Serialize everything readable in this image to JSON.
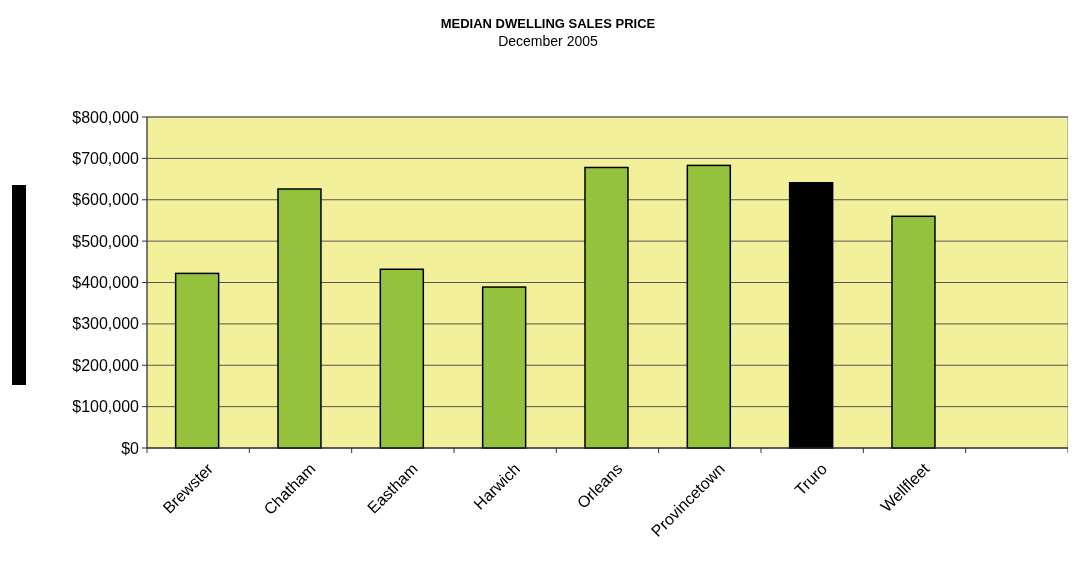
{
  "chart_data": {
    "type": "bar",
    "title": "MEDIAN DWELLING SALES PRICE",
    "subtitle": "December 2005",
    "categories": [
      "Brewster",
      "Chatham",
      "Eastham",
      "Harwich",
      "Orleans",
      "Provincetown",
      "Truro",
      "Wellfleet",
      null
    ],
    "values": [
      422000,
      626000,
      432000,
      389000,
      678000,
      683000,
      641000,
      560000,
      null
    ],
    "colors": [
      "#95c23d",
      "#95c23d",
      "#95c23d",
      "#95c23d",
      "#95c23d",
      "#95c23d",
      "#000000",
      "#95c23d",
      null
    ],
    "ylim": [
      0,
      800000
    ],
    "yticks": [
      {
        "value": 0,
        "label": "$0"
      },
      {
        "value": 100000,
        "label": "$100,000"
      },
      {
        "value": 200000,
        "label": "$200,000"
      },
      {
        "value": 300000,
        "label": "$300,000"
      },
      {
        "value": 400000,
        "label": "$400,000"
      },
      {
        "value": 500000,
        "label": "$500,000"
      },
      {
        "value": 600000,
        "label": "$600,000"
      },
      {
        "value": 700000,
        "label": "$700,000"
      },
      {
        "value": 800000,
        "label": "$800,000"
      }
    ],
    "grid": "y"
  }
}
